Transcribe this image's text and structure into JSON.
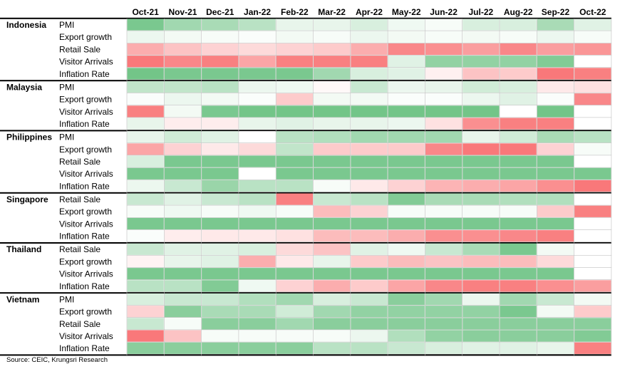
{
  "source": "Source: CEIC, Krungsri Research",
  "colors": {
    "green_strong": "#63be7b",
    "white": "#ffffff",
    "red_strong": "#f8696b"
  },
  "chart_data": {
    "type": "heatmap",
    "title": "",
    "columns": [
      "Oct-21",
      "Nov-21",
      "Dec-21",
      "Jan-22",
      "Feb-22",
      "Mar-22",
      "Apr-22",
      "May-22",
      "Jun-22",
      "Jul-22",
      "Aug-22",
      "Sep-22",
      "Oct-22"
    ],
    "scale_note": "values are color intensity from -1 (strong red) to +1 (strong green); 0 is white",
    "groups": [
      {
        "country": "Indonesia",
        "rows": [
          {
            "indicator": "PMI",
            "values": [
              0.85,
              0.6,
              0.55,
              0.45,
              0.15,
              0.15,
              0.25,
              0.1,
              0.05,
              0.25,
              0.25,
              0.55,
              0.2
            ]
          },
          {
            "indicator": "Export growth",
            "values": [
              0.12,
              0.08,
              0.05,
              0.03,
              0.08,
              0.05,
              0.12,
              0.08,
              0.05,
              0.08,
              0.05,
              0.12,
              0.05
            ]
          },
          {
            "indicator": "Retail Sale",
            "values": [
              -0.55,
              -0.4,
              -0.3,
              -0.25,
              -0.3,
              -0.35,
              -0.55,
              -0.8,
              -0.75,
              -0.65,
              -0.8,
              -0.65,
              -0.7
            ]
          },
          {
            "indicator": "Visitor Arrivals",
            "values": [
              -0.9,
              -0.8,
              -0.85,
              -0.6,
              -0.85,
              -0.85,
              -0.85,
              0.2,
              0.7,
              0.7,
              0.7,
              0.8,
              0
            ]
          },
          {
            "indicator": "Inflation Rate",
            "values": [
              0.9,
              0.85,
              0.85,
              0.85,
              0.85,
              0.6,
              0.25,
              0.2,
              -0.1,
              -0.4,
              -0.35,
              -0.9,
              -0.85
            ]
          }
        ]
      },
      {
        "country": "Malaysia",
        "rows": [
          {
            "indicator": "PMI",
            "values": [
              0.4,
              0.4,
              0.45,
              0.12,
              0.1,
              -0.05,
              0.35,
              0.12,
              0.15,
              0.3,
              0.25,
              -0.15,
              -0.2
            ]
          },
          {
            "indicator": "Export growth",
            "values": [
              0.03,
              0.12,
              0.08,
              0.03,
              -0.35,
              0.08,
              0.08,
              0.03,
              0.03,
              0.12,
              0.2,
              0.03,
              -0.8
            ]
          },
          {
            "indicator": "Visitor Arrivals",
            "values": [
              -0.85,
              0.08,
              0.85,
              0.9,
              0.9,
              0.9,
              0.9,
              0.9,
              0.9,
              0.9,
              0,
              0.9,
              0
            ]
          },
          {
            "indicator": "Inflation Rate",
            "values": [
              0.15,
              -0.12,
              -0.12,
              0.15,
              0.2,
              0.15,
              0.15,
              0.12,
              -0.2,
              -0.75,
              -0.85,
              -0.85,
              0
            ]
          }
        ]
      },
      {
        "country": "Philippines",
        "rows": [
          {
            "indicator": "PMI",
            "values": [
              0.15,
              0.3,
              0.2,
              0,
              0.45,
              0.5,
              0.6,
              0.6,
              0.6,
              0.15,
              0.3,
              0.55,
              0.45
            ]
          },
          {
            "indicator": "Export growth",
            "values": [
              -0.6,
              -0.3,
              -0.15,
              -0.25,
              0.4,
              -0.35,
              -0.35,
              -0.35,
              -0.8,
              -0.9,
              -0.9,
              -0.3,
              0.05
            ]
          },
          {
            "indicator": "Retail Sale",
            "values": [
              0.25,
              0.85,
              0.85,
              0.85,
              0.85,
              0.85,
              0.85,
              0.85,
              0.85,
              0.85,
              0.85,
              0.85,
              0
            ]
          },
          {
            "indicator": "Visitor Arrivals",
            "values": [
              0.85,
              0.85,
              0.85,
              0,
              0.85,
              0.85,
              0.85,
              0.85,
              0.85,
              0.85,
              0.85,
              0.85,
              0.85
            ]
          },
          {
            "indicator": "Inflation Rate",
            "values": [
              0.12,
              0.35,
              0.65,
              0.45,
              0.45,
              0.05,
              -0.15,
              -0.3,
              -0.5,
              -0.55,
              -0.6,
              -0.75,
              -0.9
            ]
          }
        ]
      },
      {
        "country": "Singapore",
        "rows": [
          {
            "indicator": "Retail Sale",
            "values": [
              0.35,
              0.2,
              0.35,
              0.45,
              -0.85,
              0.35,
              0.45,
              0.8,
              0.55,
              0.55,
              0.5,
              0.5,
              0
            ]
          },
          {
            "indicator": "Export growth",
            "values": [
              0.05,
              0.1,
              0.05,
              0.1,
              0.05,
              -0.45,
              -0.3,
              0.05,
              0.05,
              0.05,
              0.05,
              -0.35,
              -0.85
            ]
          },
          {
            "indicator": "Visitor Arrivals",
            "values": [
              0.85,
              0.85,
              0.85,
              0.85,
              0.85,
              0.85,
              0.85,
              0.85,
              0.85,
              0.85,
              0.85,
              0.85,
              0
            ]
          },
          {
            "indicator": "Inflation Rate",
            "values": [
              0.03,
              -0.12,
              -0.15,
              -0.15,
              -0.2,
              -0.45,
              -0.45,
              -0.55,
              -0.75,
              -0.75,
              -0.8,
              -0.85,
              0
            ]
          }
        ]
      },
      {
        "country": "Thailand",
        "rows": [
          {
            "indicator": "Retail Sale",
            "values": [
              0.35,
              0.2,
              0.2,
              0.25,
              -0.25,
              -0.4,
              0.2,
              0.1,
              0.35,
              0.55,
              0.85,
              0.08,
              0
            ]
          },
          {
            "indicator": "Export growth",
            "values": [
              -0.08,
              0.15,
              0.2,
              -0.55,
              -0.15,
              0.15,
              -0.35,
              -0.45,
              -0.4,
              -0.45,
              -0.45,
              -0.25,
              0
            ]
          },
          {
            "indicator": "Visitor Arrivals",
            "values": [
              0.85,
              0.85,
              0.85,
              0.85,
              0.85,
              0.85,
              0.85,
              0.85,
              0.85,
              0.85,
              0.85,
              0.85,
              0
            ]
          },
          {
            "indicator": "Inflation Rate",
            "values": [
              0.45,
              0.45,
              0.8,
              0.1,
              -0.3,
              -0.55,
              -0.35,
              -0.6,
              -0.8,
              -0.85,
              -0.85,
              -0.75,
              -0.65
            ]
          }
        ]
      },
      {
        "country": "Vietnam",
        "rows": [
          {
            "indicator": "PMI",
            "values": [
              0.25,
              0.35,
              0.35,
              0.5,
              0.6,
              0.25,
              0.35,
              0.75,
              0.6,
              0.12,
              0.6,
              0.35,
              0.08
            ]
          },
          {
            "indicator": "Export growth",
            "values": [
              -0.3,
              0.75,
              0.55,
              0.55,
              0.3,
              0.6,
              0.7,
              0.7,
              0.7,
              0.7,
              0.85,
              0.08,
              -0.35
            ]
          },
          {
            "indicator": "Retail Sale",
            "values": [
              0.35,
              0.05,
              0.75,
              0.75,
              0.6,
              0.75,
              0.75,
              0.75,
              0.75,
              0.75,
              0.75,
              0.75,
              0.75
            ]
          },
          {
            "indicator": "Visitor Arrivals",
            "values": [
              -0.9,
              -0.4,
              0.05,
              0.05,
              0.05,
              0.05,
              0.12,
              0.5,
              0.7,
              0.75,
              0.75,
              0.75,
              0.8
            ]
          },
          {
            "indicator": "Inflation Rate",
            "values": [
              0.75,
              0.75,
              0.75,
              0.75,
              0.75,
              0.45,
              0.45,
              0.35,
              0.25,
              0.2,
              0.2,
              0.15,
              -0.85
            ]
          }
        ]
      }
    ]
  }
}
